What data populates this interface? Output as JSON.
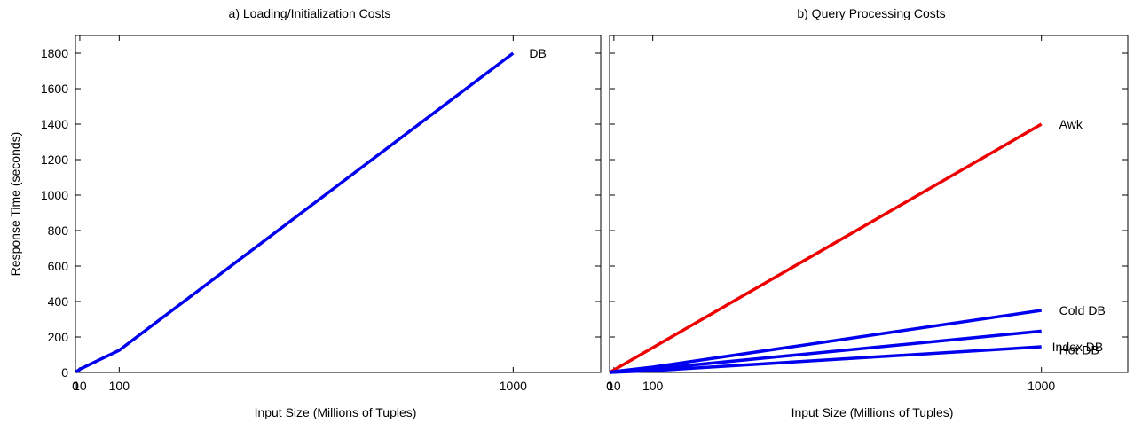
{
  "chart_data": [
    {
      "type": "line",
      "title": "a) Loading/Initialization Costs",
      "xlabel": "Input Size (Millions of Tuples)",
      "ylabel": "Response Time (seconds)",
      "xlim": [
        0,
        1200
      ],
      "ylim": [
        0,
        1900
      ],
      "x_ticks": [
        0,
        10,
        100,
        1000
      ],
      "x_tick_labels": [
        "0",
        "10",
        "100",
        "1000"
      ],
      "y_ticks": [
        0,
        200,
        400,
        600,
        800,
        1000,
        1200,
        1400,
        1600,
        1800
      ],
      "y_tick_labels": [
        "0",
        "200",
        "400",
        "600",
        "800",
        "1000",
        "1200",
        "1400",
        "1600",
        "1800"
      ],
      "grid": false,
      "series": [
        {
          "name": "DB",
          "color": "#0000ee",
          "x": [
            1,
            10,
            100,
            1000
          ],
          "y": [
            2,
            18,
            125,
            1800
          ]
        }
      ]
    },
    {
      "type": "line",
      "title": "b) Query Processing Costs",
      "xlabel": "Input Size (Millions of Tuples)",
      "ylabel": "",
      "xlim": [
        0,
        1200
      ],
      "ylim": [
        0,
        1900
      ],
      "x_ticks": [
        0,
        10,
        100,
        1000
      ],
      "x_tick_labels": [
        "0",
        "10",
        "100",
        "1000"
      ],
      "y_ticks": [
        0,
        200,
        400,
        600,
        800,
        1000,
        1200,
        1400,
        1600,
        1800
      ],
      "y_tick_labels": [],
      "grid": false,
      "series": [
        {
          "name": "Awk",
          "color": "#ee0000",
          "x": [
            1,
            10,
            100,
            1000
          ],
          "y": [
            1,
            14,
            140,
            1400
          ]
        },
        {
          "name": "Cold DB",
          "color": "#0000ee",
          "x": [
            1,
            10,
            100,
            1000
          ],
          "y": [
            1,
            5,
            30,
            350
          ]
        },
        {
          "name": "Hot DB",
          "color": "#0000ee",
          "x": [
            1,
            10,
            100,
            1000
          ],
          "y": [
            0,
            2,
            20,
            233
          ]
        },
        {
          "name": "Index DB",
          "color": "#0000ee",
          "x": [
            1,
            10,
            100,
            1000
          ],
          "y": [
            0,
            1,
            10,
            145
          ]
        }
      ]
    }
  ]
}
